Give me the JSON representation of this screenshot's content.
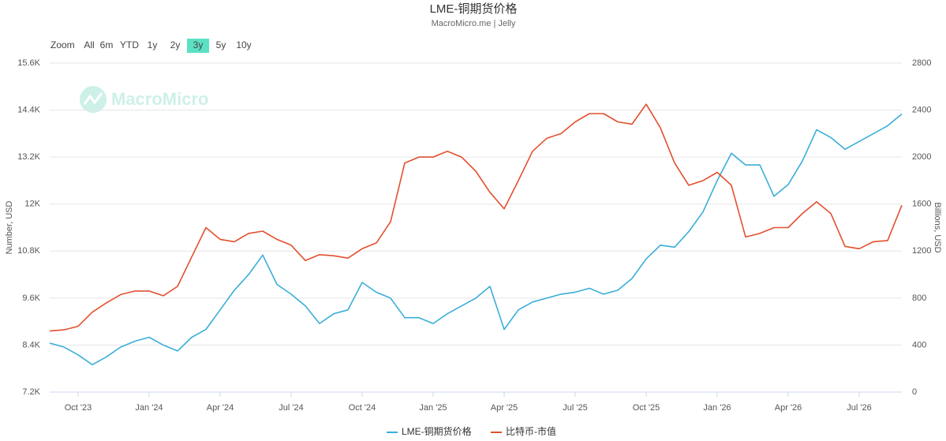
{
  "chart_data": {
    "type": "line",
    "title": "LME-铜期货价格",
    "subtitle": "MacroMicro.me | Jelly",
    "watermark": "MacroMicro",
    "range_selector": {
      "label": "Zoom",
      "buttons": [
        "All",
        "6m",
        "YTD",
        "1y",
        "2y",
        "3y",
        "5y",
        "10y"
      ],
      "active_index": 5
    },
    "ylabel": "Number, USD",
    "y2label": "Billions, USD",
    "x": [
      2023.65,
      2023.7,
      2023.75,
      2023.8,
      2023.85,
      2023.9,
      2023.95,
      2024.0,
      2024.05,
      2024.1,
      2024.15,
      2024.2,
      2024.25,
      2024.3,
      2024.35,
      2024.4,
      2024.45,
      2024.5,
      2024.55,
      2024.6,
      2024.65,
      2024.7,
      2024.75,
      2024.8,
      2024.85,
      2024.9,
      2024.95,
      2025.0,
      2025.05,
      2025.1,
      2025.15,
      2025.2,
      2025.25,
      2025.3,
      2025.35,
      2025.4,
      2025.45,
      2025.5,
      2025.55,
      2025.6,
      2025.65,
      2025.7,
      2025.75,
      2025.8,
      2025.85,
      2025.9,
      2025.95,
      2026.0,
      2026.05,
      2026.1,
      2026.15,
      2026.2,
      2026.25,
      2026.3,
      2026.35,
      2026.4,
      2026.45,
      2026.5,
      2026.55,
      2026.6,
      2026.65
    ],
    "xlim": [
      2023.65,
      2026.65
    ],
    "xticks": [
      {
        "value": 2023.75,
        "label": "Oct '23"
      },
      {
        "value": 2024.0,
        "label": "Jan '24"
      },
      {
        "value": 2024.25,
        "label": "Apr '24"
      },
      {
        "value": 2024.5,
        "label": "Jul '24"
      },
      {
        "value": 2024.75,
        "label": "Oct '24"
      },
      {
        "value": 2025.0,
        "label": "Jan '25"
      },
      {
        "value": 2025.25,
        "label": "Apr '25"
      },
      {
        "value": 2025.5,
        "label": "Jul '25"
      },
      {
        "value": 2025.75,
        "label": "Oct '25"
      },
      {
        "value": 2026.0,
        "label": "Jan '26"
      },
      {
        "value": 2026.25,
        "label": "Apr '26"
      },
      {
        "value": 2026.5,
        "label": "Jul '26"
      }
    ],
    "ylim": [
      7200,
      15600
    ],
    "yticks": [
      {
        "value": 7200,
        "label": "7.2K"
      },
      {
        "value": 8400,
        "label": "8.4K"
      },
      {
        "value": 9600,
        "label": "9.6K"
      },
      {
        "value": 10800,
        "label": "10.8K"
      },
      {
        "value": 12000,
        "label": "12K"
      },
      {
        "value": 13200,
        "label": "13.2K"
      },
      {
        "value": 14400,
        "label": "14.4K"
      },
      {
        "value": 15600,
        "label": "15.6K"
      }
    ],
    "y2lim": [
      0,
      2800
    ],
    "y2ticks": [
      0,
      400,
      800,
      1200,
      1600,
      2000,
      2400,
      2800
    ],
    "grid": true,
    "legend": "bottom",
    "series": [
      {
        "name": "LME-铜期货价格",
        "color": "#3aaed8",
        "values": [
          8450,
          8350,
          8150,
          7900,
          8100,
          8350,
          8500,
          8600,
          8400,
          8250,
          8600,
          8800,
          9300,
          9800,
          10200,
          10700,
          9950,
          9700,
          9400,
          8950,
          9200,
          9300,
          10000,
          9750,
          9600,
          9100,
          9100,
          8950,
          9200,
          9400,
          9600,
          9900,
          8800,
          9300,
          9500,
          9600,
          9700,
          9750,
          9850,
          9700,
          9800,
          10100,
          10600,
          10950,
          10900,
          11300,
          11800,
          12600,
          13300,
          13000,
          13000,
          12200,
          12500,
          13100,
          13900,
          13700,
          13400,
          13600,
          13800,
          14000,
          14300
        ]
      },
      {
        "name": "比特币-市值",
        "color": "#e2502e",
        "axis": "y2",
        "values": [
          520,
          530,
          560,
          680,
          760,
          830,
          860,
          860,
          820,
          900,
          1150,
          1400,
          1300,
          1280,
          1350,
          1370,
          1300,
          1250,
          1120,
          1170,
          1160,
          1140,
          1220,
          1270,
          1450,
          1950,
          2000,
          2000,
          2050,
          2000,
          1880,
          1700,
          1560,
          1800,
          2050,
          2160,
          2200,
          2300,
          2370,
          2370,
          2300,
          2280,
          2450,
          2250,
          1950,
          1760,
          1800,
          1870,
          1760,
          1320,
          1350,
          1400,
          1400,
          1520,
          1620,
          1520,
          1240,
          1220,
          1280,
          1290,
          1590
        ]
      }
    ]
  }
}
